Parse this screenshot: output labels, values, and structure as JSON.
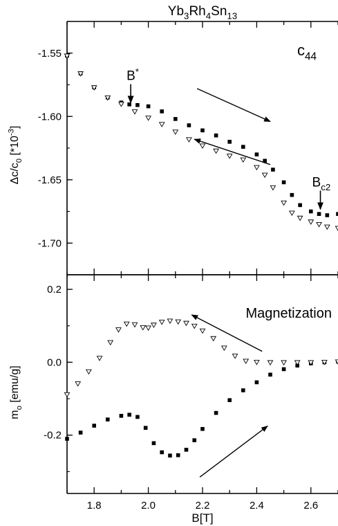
{
  "figure": {
    "title": "Yb3Rh4Sn13",
    "title_parts": [
      {
        "t": "Yb"
      },
      {
        "t": "3",
        "sub": true
      },
      {
        "t": "Rh"
      },
      {
        "t": "4",
        "sub": true
      },
      {
        "t": "Sn"
      },
      {
        "t": "13",
        "sub": true
      }
    ],
    "xlabel": "B[T]"
  },
  "chart_data": [
    {
      "type": "scatter",
      "panel": "top",
      "label": "C44",
      "label_parts": [
        {
          "t": "c"
        },
        {
          "t": "44",
          "sub": true
        }
      ],
      "ylabel": "Δc/c0 [*10-3]",
      "ylabel_parts": [
        {
          "t": "Δc/c"
        },
        {
          "t": "0",
          "sub": true
        },
        {
          "t": " [*10"
        },
        {
          "t": "-3",
          "sup": true
        },
        {
          "t": "]"
        }
      ],
      "xlim": [
        1.7,
        2.7
      ],
      "ylim": [
        -1.725,
        -1.525
      ],
      "x_ticks": [
        1.8,
        2.0,
        2.2,
        2.4,
        2.6
      ],
      "y_ticks": [
        -1.55,
        -1.6,
        -1.65,
        -1.7
      ],
      "y_tick_labels": [
        "-1.55",
        "-1.60",
        "-1.65",
        "-1.70"
      ],
      "annotations": [
        {
          "id": "bstar",
          "text": "B*",
          "text_parts": [
            {
              "t": "B"
            },
            {
              "t": "*",
              "sup": true
            }
          ],
          "x": 1.935,
          "y": -1.592
        },
        {
          "id": "bc2",
          "text": "Bc2",
          "text_parts": [
            {
              "t": "B"
            },
            {
              "t": "c2",
              "sub": true
            }
          ],
          "x": 2.635,
          "y": -1.676
        },
        {
          "id": "arrow-up",
          "direction": "increasing-field",
          "from": [
            2.18,
            -1.578
          ],
          "to": [
            2.45,
            -1.604
          ]
        },
        {
          "id": "arrow-down",
          "direction": "decreasing-field",
          "from": [
            2.45,
            -1.638
          ],
          "to": [
            2.17,
            -1.618
          ]
        }
      ],
      "series": [
        {
          "marker": "filled-square",
          "x": [
            1.7,
            1.75,
            1.8,
            1.85,
            1.9,
            1.93,
            1.96,
            2.0,
            2.05,
            2.1,
            2.15,
            2.2,
            2.25,
            2.3,
            2.35,
            2.4,
            2.43,
            2.46,
            2.5,
            2.53,
            2.56,
            2.6,
            2.63,
            2.66,
            2.7
          ],
          "y": [
            -1.552,
            -1.566,
            -1.577,
            -1.585,
            -1.589,
            -1.5905,
            -1.591,
            -1.592,
            -1.596,
            -1.602,
            -1.607,
            -1.611,
            -1.615,
            -1.62,
            -1.624,
            -1.63,
            -1.635,
            -1.642,
            -1.652,
            -1.662,
            -1.67,
            -1.675,
            -1.677,
            -1.678,
            -1.677
          ]
        },
        {
          "marker": "open-triangle",
          "x": [
            1.7,
            1.75,
            1.8,
            1.85,
            1.9,
            1.95,
            2.0,
            2.05,
            2.1,
            2.15,
            2.2,
            2.25,
            2.3,
            2.35,
            2.4,
            2.43,
            2.46,
            2.5,
            2.53,
            2.56,
            2.6,
            2.63,
            2.66,
            2.7
          ],
          "y": [
            -1.552,
            -1.566,
            -1.577,
            -1.585,
            -1.59,
            -1.596,
            -1.601,
            -1.606,
            -1.612,
            -1.618,
            -1.623,
            -1.627,
            -1.631,
            -1.634,
            -1.64,
            -1.646,
            -1.656,
            -1.668,
            -1.676,
            -1.68,
            -1.683,
            -1.685,
            -1.687,
            -1.688
          ]
        }
      ]
    },
    {
      "type": "scatter",
      "panel": "bottom",
      "label": "Magnetization",
      "ylabel": "mo [emu/g]",
      "ylabel_parts": [
        {
          "t": "m"
        },
        {
          "t": "o",
          "sub": true
        },
        {
          "t": " [emu/g]"
        }
      ],
      "xlim": [
        1.7,
        2.7
      ],
      "ylim": [
        -0.36,
        0.24
      ],
      "x_ticks": [
        1.8,
        2.0,
        2.2,
        2.4,
        2.6
      ],
      "x_tick_labels": [
        "1.8",
        "2.0",
        "2.2",
        "2.4",
        "2.6"
      ],
      "y_ticks": [
        0.2,
        0.0,
        -0.2
      ],
      "y_tick_labels": [
        "0.2",
        "0.0",
        "-0.2"
      ],
      "annotations": [
        {
          "id": "arrow-down",
          "direction": "decreasing-field",
          "from": [
            2.42,
            0.03
          ],
          "to": [
            2.16,
            0.13
          ]
        },
        {
          "id": "arrow-up",
          "direction": "increasing-field",
          "from": [
            2.19,
            -0.315
          ],
          "to": [
            2.44,
            -0.175
          ]
        }
      ],
      "series": [
        {
          "marker": "filled-square",
          "x": [
            1.7,
            1.75,
            1.8,
            1.85,
            1.9,
            1.93,
            1.96,
            1.99,
            2.02,
            2.05,
            2.08,
            2.11,
            2.14,
            2.17,
            2.2,
            2.25,
            2.3,
            2.35,
            2.4,
            2.45,
            2.5,
            2.55,
            2.6,
            2.65,
            2.7
          ],
          "y": [
            -0.21,
            -0.193,
            -0.174,
            -0.157,
            -0.147,
            -0.144,
            -0.15,
            -0.18,
            -0.222,
            -0.247,
            -0.256,
            -0.255,
            -0.24,
            -0.214,
            -0.183,
            -0.139,
            -0.104,
            -0.077,
            -0.055,
            -0.034,
            -0.019,
            -0.009,
            -0.003,
            0.0,
            0.002
          ]
        },
        {
          "marker": "open-triangle",
          "x": [
            1.7,
            1.74,
            1.78,
            1.82,
            1.86,
            1.89,
            1.92,
            1.95,
            1.98,
            2.0,
            2.02,
            2.05,
            2.08,
            2.11,
            2.14,
            2.17,
            2.2,
            2.24,
            2.28,
            2.32,
            2.36,
            2.4,
            2.45,
            2.5,
            2.55,
            2.6,
            2.65,
            2.7
          ],
          "y": [
            -0.088,
            -0.058,
            -0.025,
            0.012,
            0.055,
            0.09,
            0.106,
            0.104,
            0.096,
            0.095,
            0.103,
            0.111,
            0.114,
            0.112,
            0.108,
            0.1,
            0.087,
            0.066,
            0.04,
            0.018,
            0.004,
            0.001,
            0.0,
            0.0,
            0.0,
            0.0,
            0.001,
            0.002
          ]
        }
      ]
    }
  ]
}
